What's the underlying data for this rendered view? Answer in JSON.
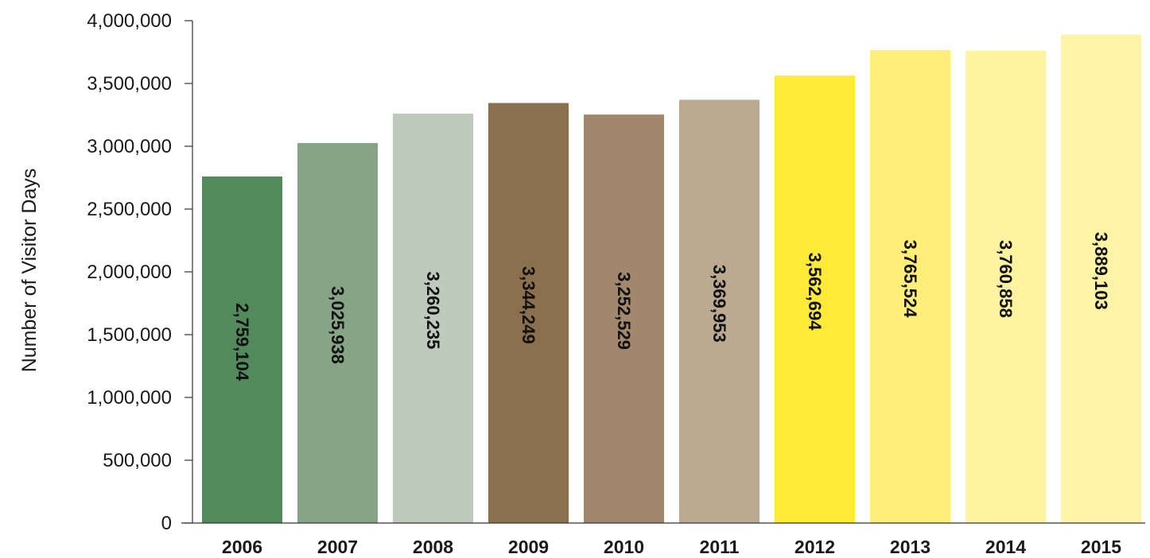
{
  "chart_data": {
    "type": "bar",
    "title": "",
    "xlabel": "",
    "ylabel": "Number of Visitor Days",
    "categories": [
      "2006",
      "2007",
      "2008",
      "2009",
      "2010",
      "2011",
      "2012",
      "2013",
      "2014",
      "2015"
    ],
    "values": [
      2759104,
      3025938,
      3260235,
      3344249,
      3252529,
      3369953,
      3562694,
      3765524,
      3760858,
      3889103
    ],
    "value_labels": [
      "2,759,104",
      "3,025,938",
      "3,260,235",
      "3,344,249",
      "3,252,529",
      "3,369,953",
      "3,562,694",
      "3,765,524",
      "3,760,858",
      "3,889,103"
    ],
    "ylim": [
      0,
      4000000
    ],
    "yticks": [
      0,
      500000,
      1000000,
      1500000,
      2000000,
      2500000,
      3000000,
      3500000,
      4000000
    ],
    "ytick_labels": [
      "0",
      "500,000",
      "1,000,000",
      "1,500,000",
      "2,000,000",
      "2,500,000",
      "3,000,000",
      "3,500,000",
      "4,000,000"
    ],
    "bar_colors": [
      "#538a5c",
      "#86a486",
      "#bdcabc",
      "#8b7050",
      "#a1886d",
      "#bca991",
      "#ffea3a",
      "#ffee7a",
      "#fff2a1",
      "#fff3a6"
    ],
    "grid": false,
    "legend": "none"
  }
}
